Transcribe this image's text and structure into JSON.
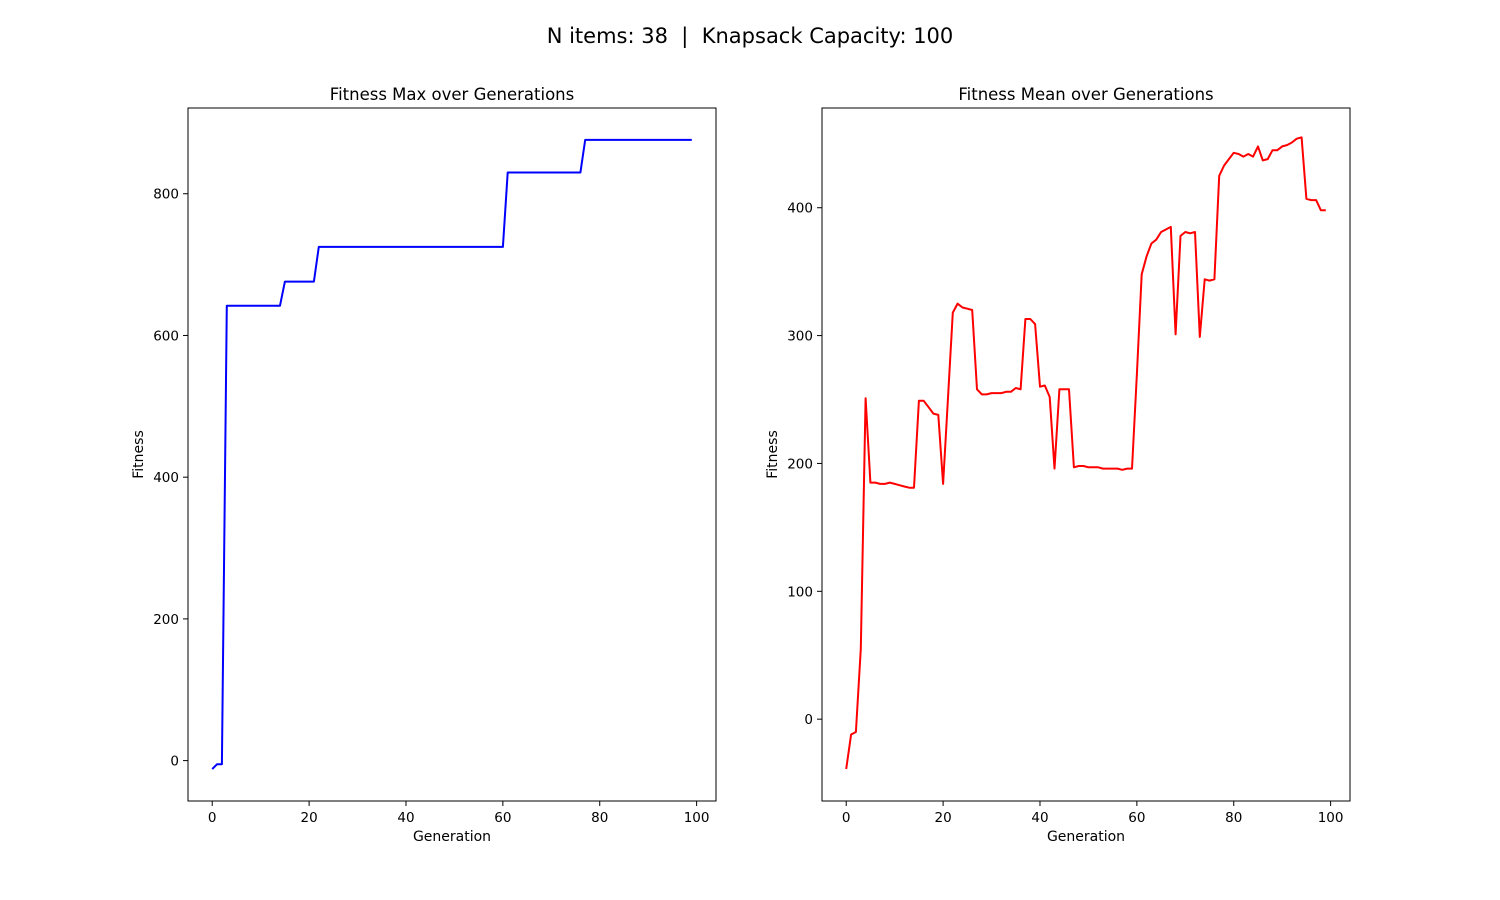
{
  "suptitle": "N items: 38  |  Knapsack Capacity: 100",
  "chart_data": [
    {
      "type": "line",
      "title": "Fitness Max over Generations",
      "xlabel": "Generation",
      "ylabel": "Fitness",
      "xlim": [
        -5,
        104
      ],
      "ylim": [
        -57,
        921
      ],
      "xticks": [
        0,
        20,
        40,
        60,
        80,
        100
      ],
      "yticks": [
        0,
        200,
        400,
        600,
        800
      ],
      "grid": false,
      "series": [
        {
          "color": "#0000ff",
          "x": [
            0,
            1,
            2,
            3,
            4,
            5,
            6,
            7,
            8,
            9,
            10,
            11,
            12,
            13,
            14,
            15,
            16,
            17,
            18,
            19,
            20,
            21,
            22,
            23,
            24,
            25,
            26,
            27,
            28,
            29,
            30,
            31,
            32,
            33,
            34,
            35,
            36,
            37,
            38,
            39,
            40,
            41,
            42,
            43,
            44,
            45,
            46,
            47,
            48,
            49,
            50,
            51,
            52,
            53,
            54,
            55,
            56,
            57,
            58,
            59,
            60,
            61,
            62,
            63,
            64,
            65,
            66,
            67,
            68,
            69,
            70,
            71,
            72,
            73,
            74,
            75,
            76,
            77,
            78,
            79,
            80,
            81,
            82,
            83,
            84,
            85,
            86,
            87,
            88,
            89,
            90,
            91,
            92,
            93,
            94,
            95,
            96,
            97,
            98,
            99
          ],
          "values": [
            -12,
            -5,
            -5,
            642,
            642,
            642,
            642,
            642,
            642,
            642,
            642,
            642,
            642,
            642,
            642,
            676,
            676,
            676,
            676,
            676,
            676,
            676,
            725,
            725,
            725,
            725,
            725,
            725,
            725,
            725,
            725,
            725,
            725,
            725,
            725,
            725,
            725,
            725,
            725,
            725,
            725,
            725,
            725,
            725,
            725,
            725,
            725,
            725,
            725,
            725,
            725,
            725,
            725,
            725,
            725,
            725,
            725,
            725,
            725,
            725,
            725,
            830,
            830,
            830,
            830,
            830,
            830,
            830,
            830,
            830,
            830,
            830,
            830,
            830,
            830,
            830,
            830,
            876,
            876,
            876,
            876,
            876,
            876,
            876,
            876,
            876,
            876,
            876,
            876,
            876,
            876,
            876,
            876,
            876,
            876,
            876,
            876,
            876,
            876,
            876
          ]
        }
      ]
    },
    {
      "type": "line",
      "title": "Fitness Mean over Generations",
      "xlabel": "Generation",
      "ylabel": "Fitness",
      "xlim": [
        -5,
        104
      ],
      "ylim": [
        -64,
        478
      ],
      "xticks": [
        0,
        20,
        40,
        60,
        80,
        100
      ],
      "yticks": [
        0,
        100,
        200,
        300,
        400
      ],
      "grid": false,
      "series": [
        {
          "color": "#ff0000",
          "x": [
            0,
            1,
            2,
            3,
            4,
            5,
            6,
            7,
            8,
            9,
            10,
            11,
            12,
            13,
            14,
            15,
            16,
            17,
            18,
            19,
            20,
            21,
            22,
            23,
            24,
            25,
            26,
            27,
            28,
            29,
            30,
            31,
            32,
            33,
            34,
            35,
            36,
            37,
            38,
            39,
            40,
            41,
            42,
            43,
            44,
            45,
            46,
            47,
            48,
            49,
            50,
            51,
            52,
            53,
            54,
            55,
            56,
            57,
            58,
            59,
            60,
            61,
            62,
            63,
            64,
            65,
            66,
            67,
            68,
            69,
            70,
            71,
            72,
            73,
            74,
            75,
            76,
            77,
            78,
            79,
            80,
            81,
            82,
            83,
            84,
            85,
            86,
            87,
            88,
            89,
            90,
            91,
            92,
            93,
            94,
            95,
            96,
            97,
            98,
            99
          ],
          "values": [
            -39,
            -12,
            -10,
            55,
            251,
            185,
            185,
            184,
            184,
            185,
            184,
            183,
            182,
            181,
            181,
            249,
            249,
            244,
            239,
            238,
            184,
            250,
            318,
            325,
            322,
            321,
            320,
            258,
            254,
            254,
            255,
            255,
            255,
            256,
            256,
            259,
            258,
            313,
            313,
            309,
            260,
            261,
            252,
            196,
            258,
            258,
            258,
            197,
            198,
            198,
            197,
            197,
            197,
            196,
            196,
            196,
            196,
            195,
            196,
            196,
            270,
            348,
            362,
            372,
            375,
            381,
            383,
            385,
            301,
            378,
            381,
            380,
            381,
            299,
            344,
            343,
            344,
            425,
            433,
            438,
            443,
            442,
            440,
            442,
            440,
            448,
            437,
            438,
            445,
            445,
            448,
            449,
            451,
            454,
            455,
            407,
            406,
            406,
            398,
            398
          ]
        }
      ]
    }
  ]
}
